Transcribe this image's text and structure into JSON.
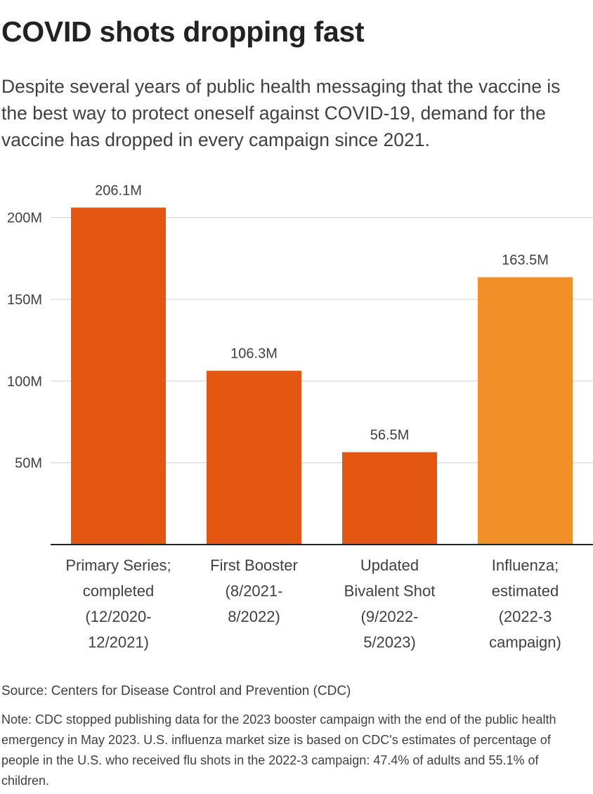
{
  "title": "COVID shots dropping fast",
  "subtitle": "Despite several years of public health messaging that the vaccine is the best way to protect oneself against COVID-19, demand for the vaccine has dropped in every campaign since 2021.",
  "chart_data": {
    "type": "bar",
    "categories": [
      [
        "Primary Series;",
        "completed",
        "(12/2020-",
        "12/2021)"
      ],
      [
        "First Booster",
        "(8/2021-",
        "8/2022)"
      ],
      [
        "Updated",
        "Bivalent Shot",
        "(9/2022-",
        "5/2023)"
      ],
      [
        "Influenza;",
        "estimated",
        "(2022-3",
        "campaign)"
      ]
    ],
    "values": [
      206.1,
      106.3,
      56.5,
      163.5
    ],
    "data_labels": [
      "206.1M",
      "106.3M",
      "56.5M",
      "163.5M"
    ],
    "colors": [
      "#e35712",
      "#e35712",
      "#e35712",
      "#f28f27"
    ],
    "yticks": [
      50,
      100,
      150,
      200
    ],
    "ytick_labels": [
      "50M",
      "100M",
      "150M",
      "200M"
    ],
    "ylim": [
      0,
      220
    ],
    "grid": true
  },
  "source": "Source: Centers for Disease Control and Prevention (CDC)",
  "note": "Note: CDC stopped publishing data for the 2023 booster campaign with the end of the public health emergency in May 2023. U.S. influenza market size is based on CDC's estimates of percentage of people in the U.S. who received flu shots in the 2022-3 campaign: 47.4% of adults and 55.1% of children."
}
